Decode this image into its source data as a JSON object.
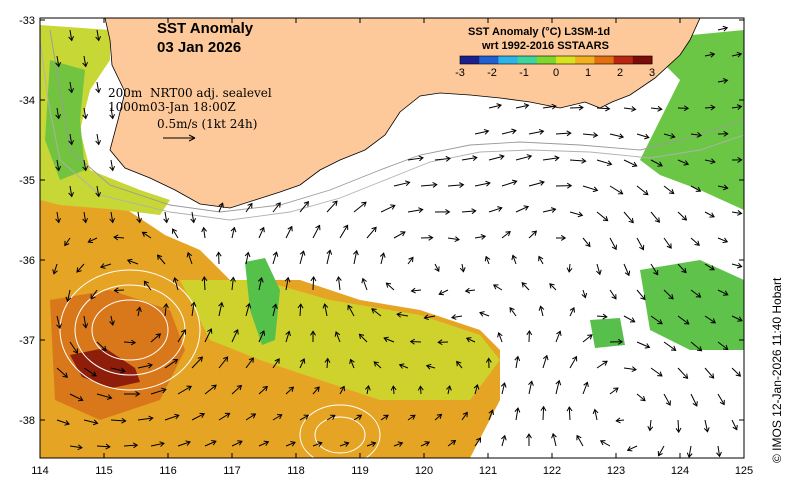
{
  "title": {
    "line1": "SST Anomaly",
    "line2": "03 Jan 2026"
  },
  "info": {
    "depth1": "200m",
    "depth2": "1000m",
    "product": "NRT00 adj. sealevel",
    "time": "03-Jan 18:00Z",
    "scale": "0.5m/s (1kt 24h)"
  },
  "colorbar": {
    "title_line1": "SST Anomaly (°C) L3SM-1d",
    "title_line2": "wrt 1992-2016 SSTAARS",
    "ticks": [
      "-3",
      "-2",
      "-1",
      "0",
      "1",
      "2",
      "3"
    ],
    "colors": [
      "#1b1f8c",
      "#1f5fd1",
      "#2db3e8",
      "#3fd3a0",
      "#7fd62e",
      "#d9e21f",
      "#f0b020",
      "#e07010",
      "#b82810",
      "#7a0d08"
    ]
  },
  "axes": {
    "x_ticks": [
      "114",
      "115",
      "116",
      "117",
      "118",
      "119",
      "120",
      "121",
      "122",
      "123",
      "124",
      "125"
    ],
    "y_ticks": [
      "-33",
      "-34",
      "-35",
      "-36",
      "-37",
      "-38"
    ]
  },
  "credit": "© IMOS 12-Jan-2026 11:40 Hobart",
  "colors": {
    "land": "#fdc99a",
    "ocean_nodata": "#ffffff",
    "warm": "#e8a020",
    "mid": "#c8d830",
    "cool": "#5cc84a"
  }
}
